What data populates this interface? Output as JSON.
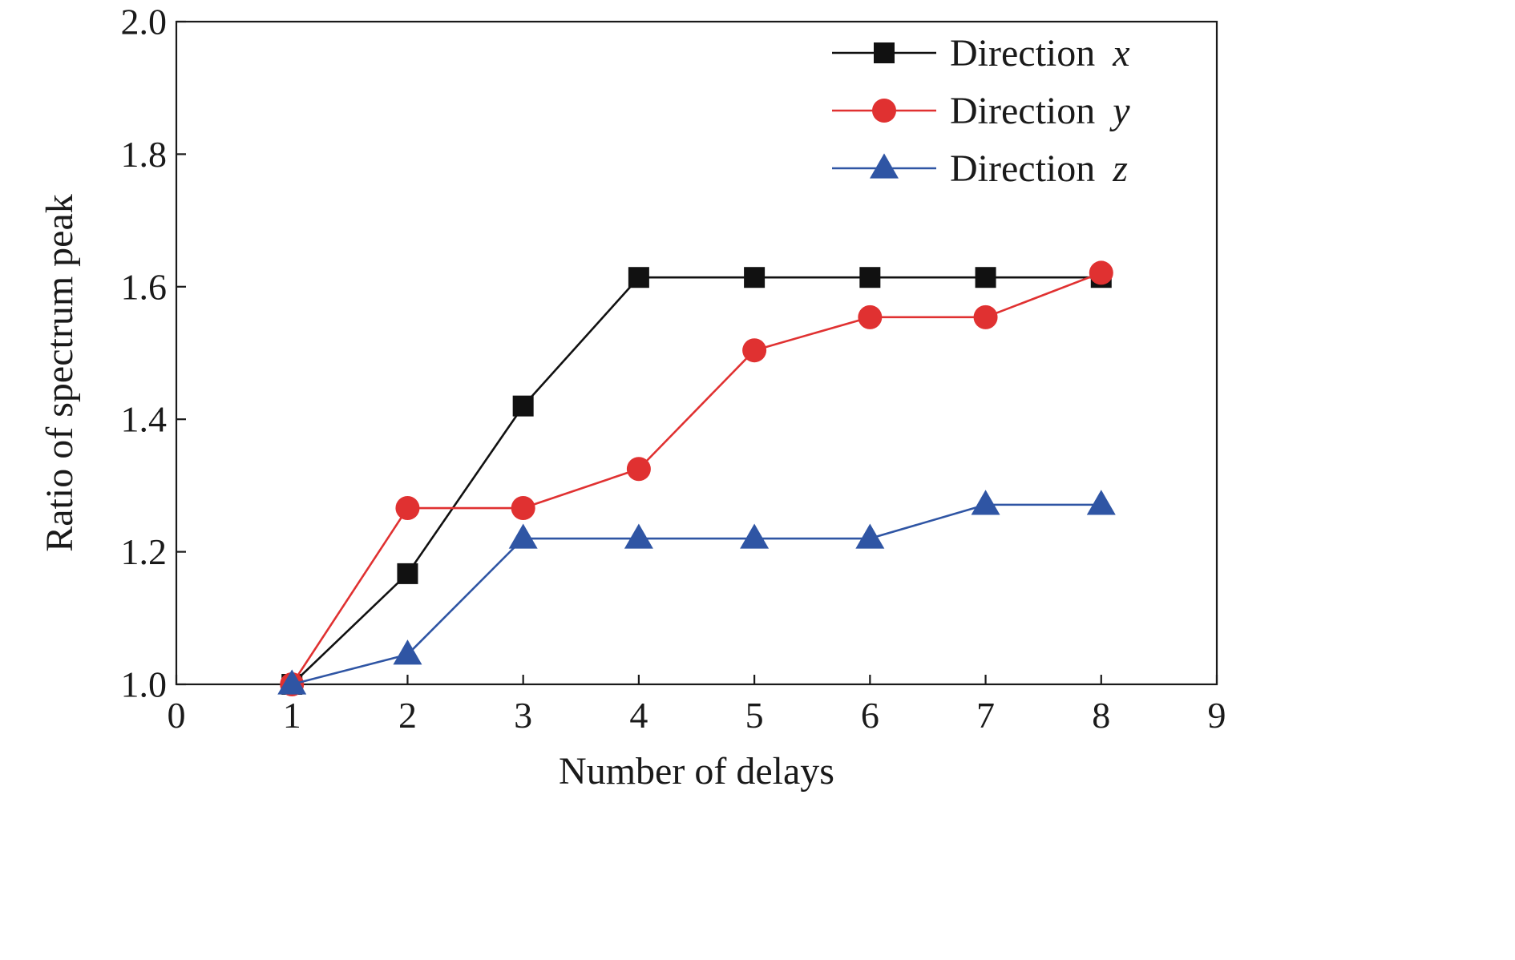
{
  "chart_data": {
    "type": "line",
    "title": "",
    "xlabel": "Number of delays",
    "ylabel": "Ratio of spectrum peak",
    "xlim": [
      0,
      9
    ],
    "ylim": [
      1.0,
      2.0
    ],
    "xticks": [
      0,
      1,
      2,
      3,
      4,
      5,
      6,
      7,
      8,
      9
    ],
    "yticks": [
      1.0,
      1.2,
      1.4,
      1.6,
      1.8,
      2.0
    ],
    "xtick_labels": [
      "0",
      "1",
      "2",
      "3",
      "4",
      "5",
      "6",
      "7",
      "8",
      "9"
    ],
    "ytick_labels": [
      "1.0",
      "1.2",
      "1.4",
      "1.6",
      "1.8",
      "2.0"
    ],
    "grid": false,
    "legend_position": "top-right",
    "x": [
      1,
      2,
      3,
      4,
      5,
      6,
      7,
      8
    ],
    "series": [
      {
        "name": "Direction x",
        "name_prefix": "Direction ",
        "name_var": "x",
        "color": "#111111",
        "marker": "square",
        "values": [
          1.0,
          1.167,
          1.42,
          1.614,
          1.614,
          1.614,
          1.614,
          1.614
        ]
      },
      {
        "name": "Direction y",
        "name_prefix": "Direction ",
        "name_var": "y",
        "color": "#e03131",
        "marker": "circle",
        "values": [
          1.0,
          1.266,
          1.266,
          1.325,
          1.504,
          1.554,
          1.554,
          1.621
        ]
      },
      {
        "name": "Direction z",
        "name_prefix": "Direction ",
        "name_var": "z",
        "color": "#2f55a4",
        "marker": "triangle",
        "values": [
          1.0,
          1.045,
          1.22,
          1.22,
          1.22,
          1.22,
          1.271,
          1.271
        ]
      }
    ]
  }
}
